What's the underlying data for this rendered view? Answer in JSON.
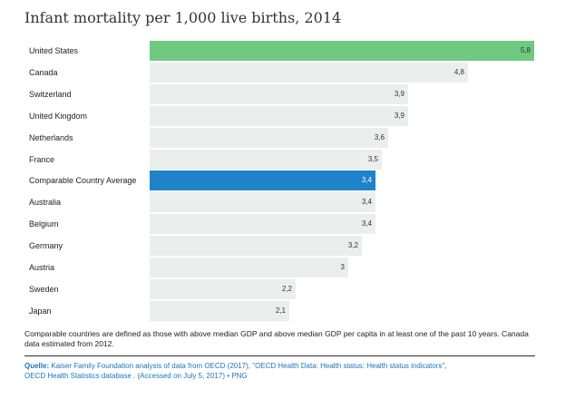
{
  "title": "Infant mortality per 1,000 live births, 2014",
  "chart_data": {
    "type": "bar",
    "orientation": "horizontal",
    "title": "Infant mortality per 1,000 live births, 2014",
    "categories": [
      "United States",
      "Canada",
      "Switzerland",
      "United Kingdom",
      "Netherlands",
      "France",
      "Comparable Country Average",
      "Australia",
      "Belgium",
      "Germany",
      "Austria",
      "Sweden",
      "Japan"
    ],
    "values": [
      5.8,
      4.8,
      3.9,
      3.9,
      3.6,
      3.5,
      3.4,
      3.4,
      3.4,
      3.2,
      3.0,
      2.2,
      2.1
    ],
    "value_labels": [
      "5,8",
      "4,8",
      "3,9",
      "3,9",
      "3,6",
      "3,5",
      "3,4",
      "3,4",
      "3,4",
      "3,2",
      "3",
      "2,2",
      "2,1"
    ],
    "highlight": {
      "United States": "#6fc980",
      "Comparable Country Average": "#1e83c8"
    },
    "default_color": "#eceeee",
    "xlim": [
      0,
      5.85
    ],
    "xlabel": "",
    "ylabel": ""
  },
  "footnote": "Comparable countries are defined as those with above median GDP and above median GDP per capita in at least one of the past 10 years. Canada data estimated from 2012.",
  "source": {
    "label": "Quelle:",
    "text": "Kaiser Family Foundation analysis of data from OECD (2017), \"OECD Health Data: Health status: Health status indicators\", OECD Health Statistics database . (Accessed on July 5, 2017) • PNG"
  }
}
